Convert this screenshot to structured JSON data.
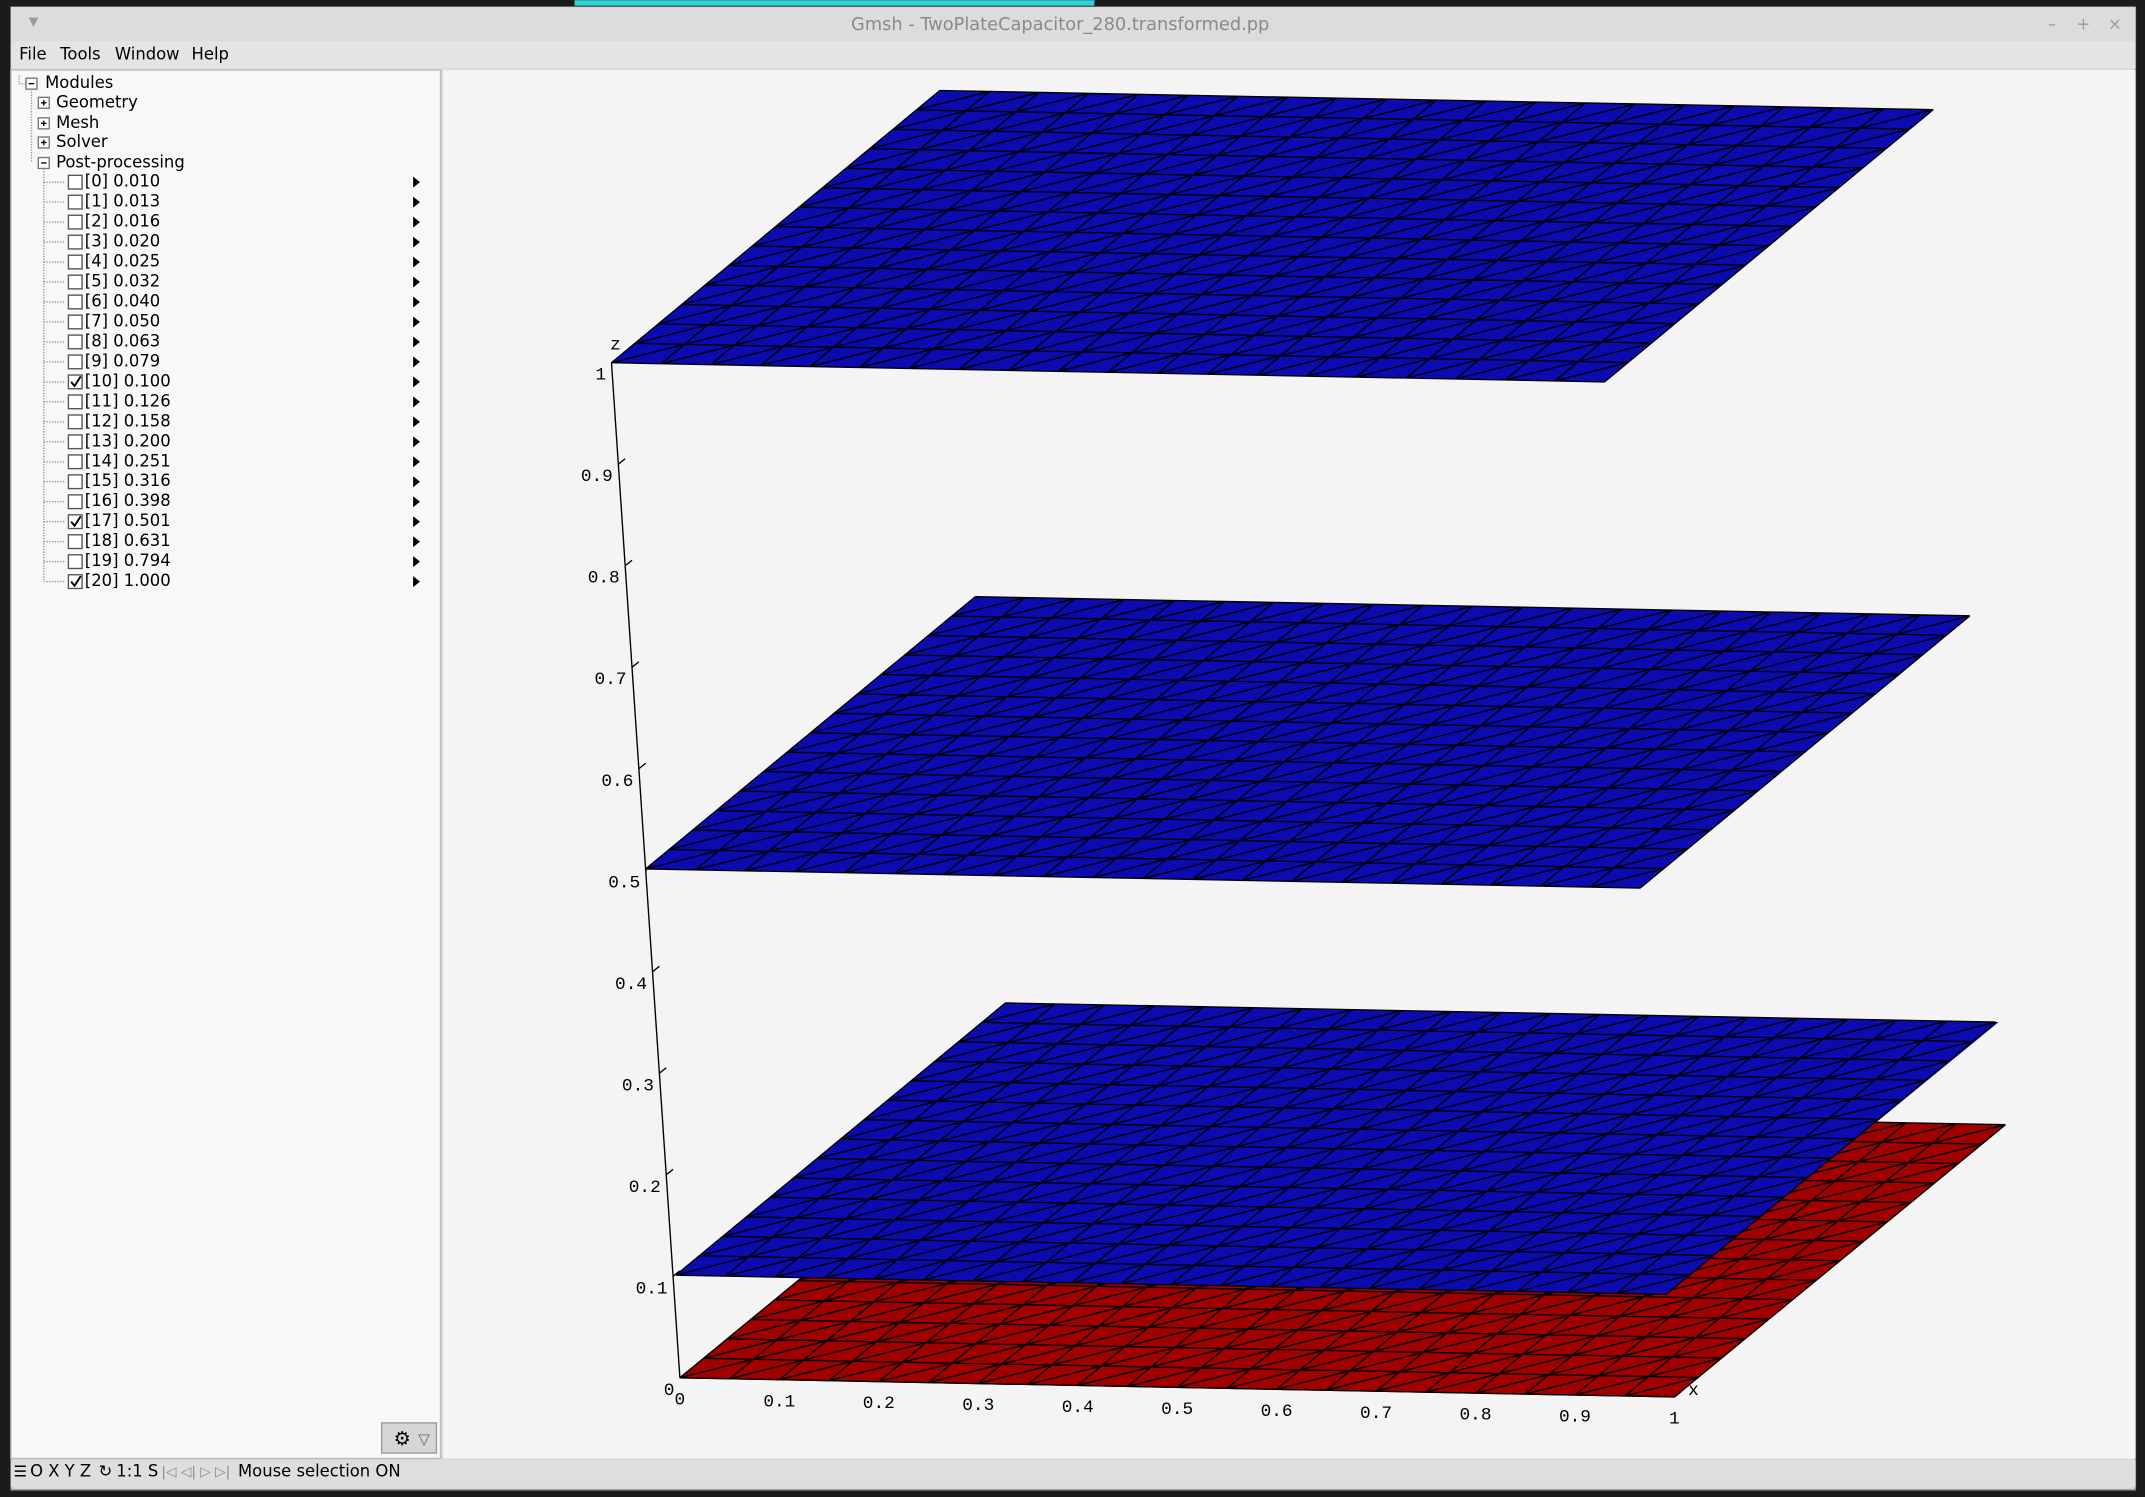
{
  "window": {
    "title": "Gmsh - TwoPlateCapacitor_280.transformed.pp",
    "controls": [
      "–",
      "+",
      "×"
    ]
  },
  "menu": [
    "File",
    "Tools",
    "Window",
    "Help"
  ],
  "tree": {
    "root": "Modules",
    "items": [
      "Geometry",
      "Mesh",
      "Solver",
      "Post-processing"
    ],
    "views": [
      {
        "label": "[0] 0.010",
        "checked": false
      },
      {
        "label": "[1] 0.013",
        "checked": false
      },
      {
        "label": "[2] 0.016",
        "checked": false
      },
      {
        "label": "[3] 0.020",
        "checked": false
      },
      {
        "label": "[4] 0.025",
        "checked": false
      },
      {
        "label": "[5] 0.032",
        "checked": false
      },
      {
        "label": "[6] 0.040",
        "checked": false
      },
      {
        "label": "[7] 0.050",
        "checked": false
      },
      {
        "label": "[8] 0.063",
        "checked": false
      },
      {
        "label": "[9] 0.079",
        "checked": false
      },
      {
        "label": "[10] 0.100",
        "checked": true
      },
      {
        "label": "[11] 0.126",
        "checked": false
      },
      {
        "label": "[12] 0.158",
        "checked": false
      },
      {
        "label": "[13] 0.200",
        "checked": false
      },
      {
        "label": "[14] 0.251",
        "checked": false
      },
      {
        "label": "[15] 0.316",
        "checked": false
      },
      {
        "label": "[16] 0.398",
        "checked": false
      },
      {
        "label": "[17] 0.501",
        "checked": true
      },
      {
        "label": "[18] 0.631",
        "checked": false
      },
      {
        "label": "[19] 0.794",
        "checked": false
      },
      {
        "label": "[20] 1.000",
        "checked": true
      }
    ]
  },
  "view3d": {
    "z_axis_label": "z",
    "z_ticks": [
      "0",
      "0.1",
      "0.2",
      "0.3",
      "0.4",
      "0.5",
      "0.6",
      "0.7",
      "0.8",
      "0.9",
      "1"
    ],
    "x_axis_label": "x",
    "x_ticks": [
      "0",
      "0.1",
      "0.2",
      "0.3",
      "0.4",
      "0.5",
      "0.6",
      "0.7",
      "0.8",
      "0.9",
      "1"
    ]
  },
  "status": {
    "axes_buttons": "O X Y Z",
    "scale": "1:1 S",
    "message": "Mouse selection ON"
  }
}
